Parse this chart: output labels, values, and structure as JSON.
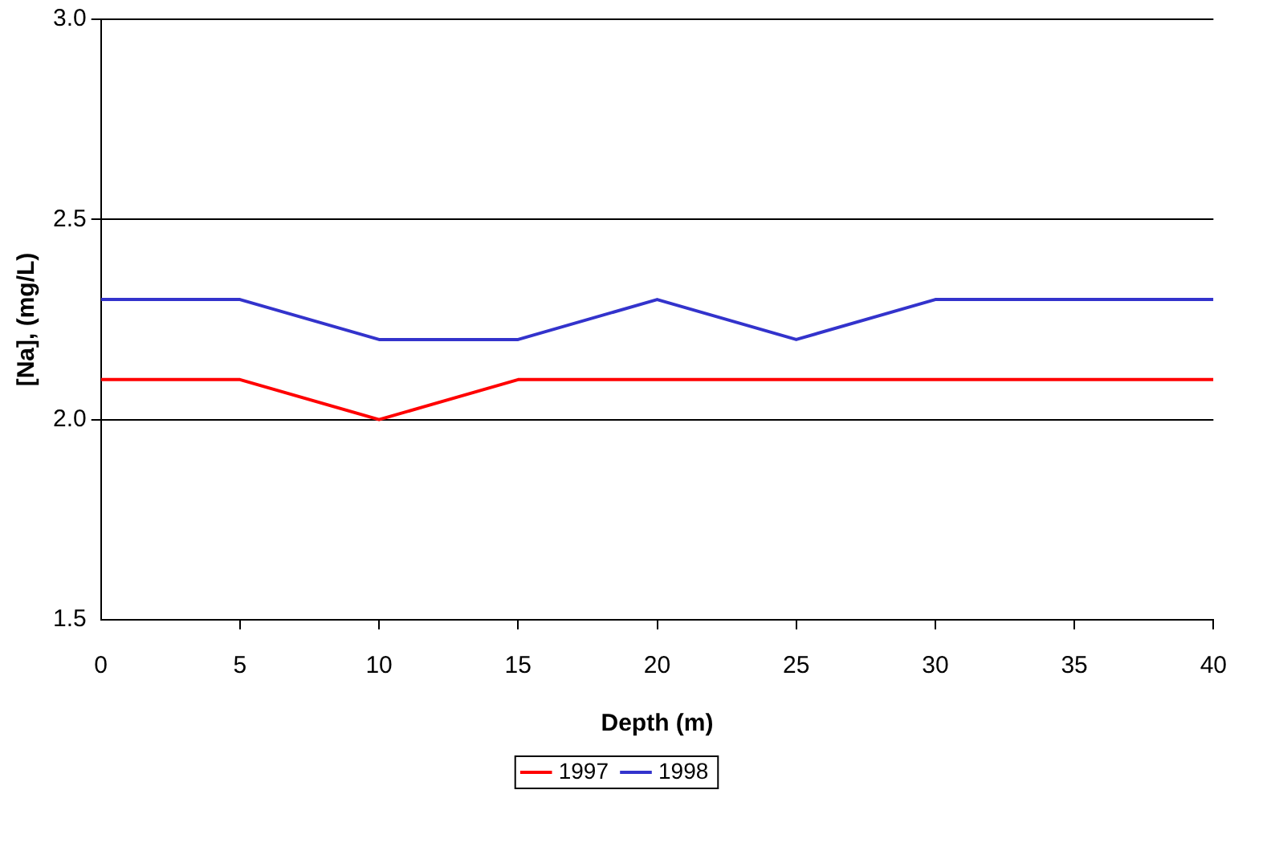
{
  "chart_data": {
    "type": "line",
    "xlabel": "Depth (m)",
    "ylabel": "[Na], (mg/L)",
    "x": [
      0,
      5,
      10,
      15,
      20,
      25,
      30,
      35,
      40
    ],
    "series": [
      {
        "name": "1997",
        "color": "#ff0000",
        "values": [
          2.1,
          2.1,
          2.0,
          2.1,
          2.1,
          2.1,
          2.1,
          2.1,
          2.1
        ]
      },
      {
        "name": "1998",
        "color": "#3333cc",
        "values": [
          2.3,
          2.3,
          2.2,
          2.2,
          2.3,
          2.2,
          2.3,
          2.3,
          2.3
        ]
      }
    ],
    "xlim": [
      0,
      40
    ],
    "xticks": [
      0,
      5,
      10,
      15,
      20,
      25,
      30,
      35,
      40
    ],
    "ylim": [
      1.5,
      3.0
    ],
    "yticks": [
      {
        "value": 1.5,
        "label": "1.5"
      },
      {
        "value": 2.0,
        "label": "2.0"
      },
      {
        "value": 2.5,
        "label": "2.5"
      },
      {
        "value": 3.0,
        "label": "3.0"
      }
    ],
    "grid": "y",
    "legend": "bottom",
    "marker": "none",
    "line_style": "solid"
  }
}
